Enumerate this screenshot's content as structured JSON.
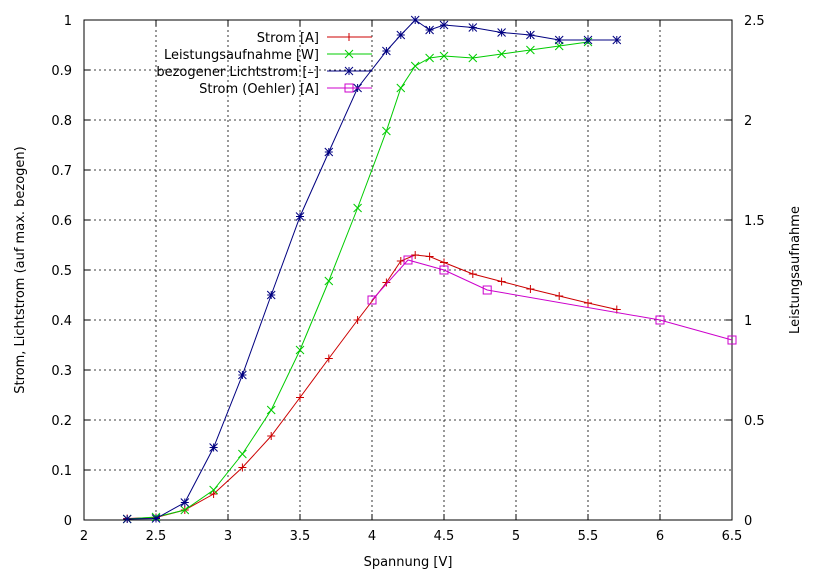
{
  "chart_data": {
    "type": "line",
    "title": "",
    "xlabel": "Spannung [V]",
    "ylabel": "Strom, Lichtstrom (auf max. bezogen)",
    "y2label": "Leistungsaufnahme",
    "xlim": [
      2,
      6.5
    ],
    "ylim": [
      0,
      1
    ],
    "y2lim": [
      0,
      2.5
    ],
    "x_ticks": [
      "2",
      "2.5",
      "3",
      "3.5",
      "4",
      "4.5",
      "5",
      "5.5",
      "6",
      "6.5"
    ],
    "y_ticks": [
      "0",
      "0.1",
      "0.2",
      "0.3",
      "0.4",
      "0.5",
      "0.6",
      "0.7",
      "0.8",
      "0.9",
      "1"
    ],
    "y2_ticks": [
      "0",
      "0.5",
      "1",
      "1.5",
      "2",
      "2.5"
    ],
    "grid": true,
    "legend_position": "top-left",
    "series": [
      {
        "name": "Strom [A]",
        "axis": "y",
        "color": "#cc0000",
        "marker": "plus",
        "x": [
          2.3,
          2.5,
          2.7,
          2.9,
          3.1,
          3.3,
          3.5,
          3.7,
          3.9,
          4.1,
          4.2,
          4.3,
          4.4,
          4.5,
          4.7,
          4.9,
          5.1,
          5.3,
          5.5,
          5.7
        ],
        "y": [
          0.003,
          0.005,
          0.02,
          0.052,
          0.105,
          0.168,
          0.245,
          0.323,
          0.4,
          0.475,
          0.518,
          0.53,
          0.527,
          0.515,
          0.492,
          0.477,
          0.462,
          0.448,
          0.434,
          0.421
        ]
      },
      {
        "name": "Leistungsaufnahme [W]",
        "axis": "y2",
        "color": "#00cc00",
        "marker": "cross",
        "x": [
          2.3,
          2.5,
          2.7,
          2.9,
          3.1,
          3.3,
          3.5,
          3.7,
          3.9,
          4.1,
          4.2,
          4.3,
          4.4,
          4.5,
          4.7,
          4.9,
          5.1,
          5.3,
          5.5
        ],
        "y": [
          0.005,
          0.015,
          0.05,
          0.15,
          0.33,
          0.55,
          0.85,
          1.195,
          1.56,
          1.945,
          2.16,
          2.27,
          2.31,
          2.32,
          2.31,
          2.33,
          2.35,
          2.37,
          2.39
        ]
      },
      {
        "name": "bezogener Lichtstrom [–]",
        "axis": "y",
        "color": "#000080",
        "marker": "star",
        "x": [
          2.3,
          2.5,
          2.7,
          2.9,
          3.1,
          3.3,
          3.5,
          3.7,
          3.9,
          4.1,
          4.2,
          4.3,
          4.4,
          4.5,
          4.7,
          4.9,
          5.1,
          5.3,
          5.5,
          5.7
        ],
        "y": [
          0.002,
          0.003,
          0.035,
          0.145,
          0.29,
          0.45,
          0.607,
          0.736,
          0.864,
          0.938,
          0.97,
          1.0,
          0.98,
          0.99,
          0.985,
          0.975,
          0.97,
          0.96,
          0.96,
          0.96
        ]
      },
      {
        "name": "Strom (Oehler) [A]",
        "axis": "y",
        "color": "#cc00cc",
        "marker": "square",
        "x": [
          4.0,
          4.25,
          4.5,
          4.8,
          6.0,
          6.5
        ],
        "y": [
          0.44,
          0.52,
          0.5,
          0.46,
          0.4,
          0.36
        ]
      }
    ]
  }
}
